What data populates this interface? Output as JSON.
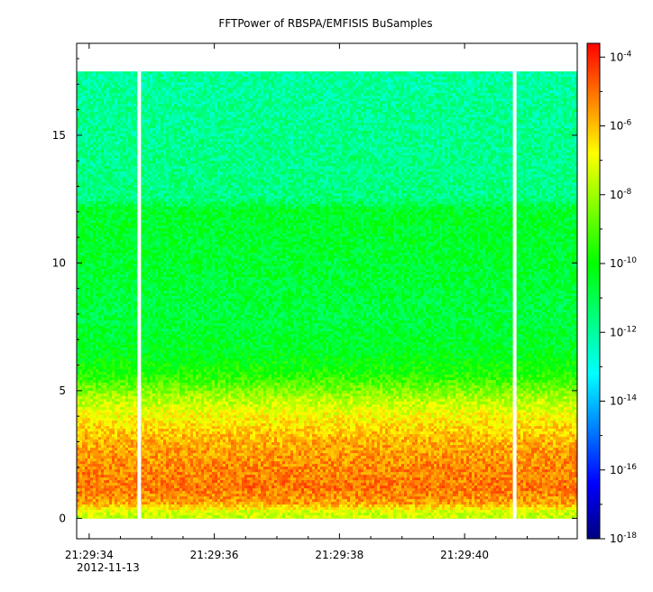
{
  "chart_data": {
    "type": "heatmap",
    "title": "FFTPower of RBSPA/EMFISIS  BuSamples",
    "xlabel": "",
    "ylabel": "",
    "x_ticks": [
      "21:29:34",
      "21:29:36",
      "21:29:38",
      "21:29:40"
    ],
    "x_date_label": "2012-11-13",
    "x_range_seconds": [
      33.8,
      41.8
    ],
    "y_ticks": [
      0,
      5,
      10,
      15
    ],
    "y_range": [
      -0.8,
      18.6
    ],
    "data_y_range": [
      0,
      17.5
    ],
    "data_gaps_x_seconds": [
      34.8,
      40.8
    ],
    "colorbar": {
      "scale": "log",
      "range_exponents": [
        -18,
        -3.6
      ],
      "tick_base": "10",
      "tick_exponents": [
        "-18",
        "-16",
        "-14",
        "-12",
        "-10",
        "-8",
        "-6",
        "-4"
      ],
      "colors": [
        "#00007f",
        "#0000ff",
        "#007fff",
        "#00ffff",
        "#00ff7f",
        "#00ff00",
        "#7fff00",
        "#ffff00",
        "#ff7f00",
        "#ff0000"
      ]
    },
    "frequency_profile": [
      {
        "y": 0.2,
        "log10_power": -7.5
      },
      {
        "y": 0.6,
        "log10_power": -5.6
      },
      {
        "y": 1.2,
        "log10_power": -5.1
      },
      {
        "y": 2.0,
        "log10_power": -5.3
      },
      {
        "y": 3.0,
        "log10_power": -5.8
      },
      {
        "y": 4.0,
        "log10_power": -6.8
      },
      {
        "y": 4.8,
        "log10_power": -8.0
      },
      {
        "y": 5.6,
        "log10_power": -9.6
      },
      {
        "y": 6.5,
        "log10_power": -10.4
      },
      {
        "y": 8.0,
        "log10_power": -10.8
      },
      {
        "y": 10.0,
        "log10_power": -10.6
      },
      {
        "y": 12.1,
        "log10_power": -10.5
      },
      {
        "y": 12.5,
        "log10_power": -11.6
      },
      {
        "y": 15.0,
        "log10_power": -11.8
      },
      {
        "y": 17.5,
        "log10_power": -12.0
      }
    ]
  }
}
